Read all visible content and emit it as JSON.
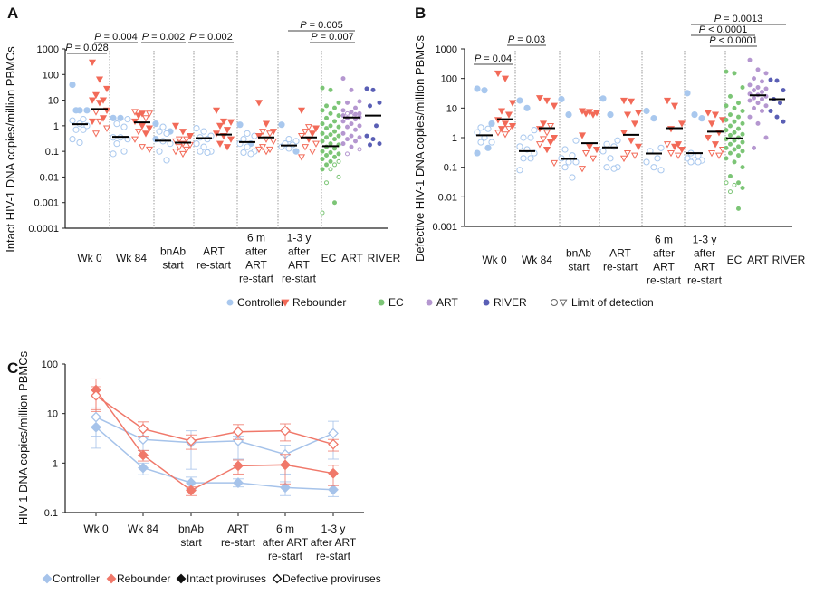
{
  "colors": {
    "controller": "#a9c8ee",
    "rebounder": "#f26a58",
    "ec": "#7cc576",
    "art": "#b597d0",
    "river": "#5a5fb5",
    "median": "#000000",
    "c_controller": "#a6c3ea",
    "c_rebounder": "#f0786a"
  },
  "legend_ab": {
    "controller": "Controller",
    "rebounder": "Rebounder",
    "ec": "EC",
    "art": "ART",
    "river": "RIVER",
    "lod": "Limit of detection"
  },
  "legend_c": {
    "controller": "Controller",
    "rebounder": "Rebounder",
    "intact": "Intact proviruses",
    "defective": "Defective proviruses"
  },
  "chart_data": [
    {
      "panel": "A",
      "type": "scatter",
      "scale": "log",
      "ylabel": "Intact HIV-1 DNA copies/million PBMCs",
      "ylim": [
        0.0001,
        1000
      ],
      "yticks": [
        "1000",
        "100",
        "10",
        "1",
        "0.1",
        "0.01",
        "0.001",
        "0.0001"
      ],
      "timepoints": [
        "Wk 0",
        "Wk 84",
        "bnAb\nstart",
        "ART\nre-start",
        "6 m\nafter\nART\nre-start",
        "1-3 y\nafter\nART\nre-start",
        "EC",
        "ART",
        "RIVER"
      ],
      "groups": [
        {
          "tp": 0,
          "cohort": "controller",
          "median": 1.15,
          "filled": [
            40,
            4,
            4,
            4
          ],
          "open": [
            1.8,
            1.6,
            1.2,
            1,
            0.7,
            0.7,
            0.3,
            0.22
          ]
        },
        {
          "tp": 0,
          "cohort": "rebounder",
          "median": 4.5,
          "filled": [
            300,
            65,
            28,
            16,
            10,
            10,
            8,
            4,
            2,
            1.5
          ],
          "open": [
            3.5,
            1.5,
            0.8,
            0.5
          ]
        },
        {
          "tp": 1,
          "cohort": "controller",
          "median": 0.37,
          "filled": [
            2,
            2
          ],
          "open": [
            1.8,
            1.2,
            0.9,
            0.35,
            0.35,
            0.3,
            0.2,
            0.1,
            0.08
          ]
        },
        {
          "tp": 1,
          "cohort": "rebounder",
          "median": 1.35,
          "filled": [
            3,
            2.5,
            1.5,
            1,
            0.8,
            0.5
          ],
          "open": [
            3.5,
            3,
            2,
            0.6,
            0.3,
            0.15,
            0.12
          ]
        },
        {
          "tp": 2,
          "cohort": "controller",
          "median": 0.26,
          "filled": [
            1.2,
            0.6,
            0.3
          ],
          "open": [
            0.9,
            0.6,
            0.5,
            0.25,
            0.2,
            0.1,
            0.045
          ]
        },
        {
          "tp": 2,
          "cohort": "rebounder",
          "median": 0.22,
          "filled": [
            1,
            0.6,
            0.4
          ],
          "open": [
            0.3,
            0.3,
            0.25,
            0.2,
            0.18,
            0.15,
            0.12,
            0.1,
            0.08
          ]
        },
        {
          "tp": 3,
          "cohort": "controller",
          "median": 0.33,
          "filled": [],
          "open": [
            0.8,
            0.6,
            0.4,
            0.35,
            0.3,
            0.2,
            0.15,
            0.1,
            0.1,
            0.09
          ]
        },
        {
          "tp": 3,
          "cohort": "rebounder",
          "median": 0.45,
          "filled": [
            4,
            1.5,
            1.4,
            1,
            0.7,
            0.5,
            0.4,
            0.3,
            0.2,
            0.15
          ],
          "open": []
        },
        {
          "tp": 4,
          "cohort": "controller",
          "median": 0.23,
          "filled": [
            1.1,
            0.2
          ],
          "open": [
            0.5,
            0.4,
            0.3,
            0.2,
            0.15,
            0.1,
            0.09,
            0.08
          ]
        },
        {
          "tp": 4,
          "cohort": "rebounder",
          "median": 0.35,
          "filled": [
            8,
            1.2,
            0.6,
            0.4
          ],
          "open": [
            0.6,
            0.5,
            0.3,
            0.25,
            0.15,
            0.12,
            0.12,
            0.1
          ]
        },
        {
          "tp": 5,
          "cohort": "controller",
          "median": 0.17,
          "filled": [
            1.1,
            0.1
          ],
          "open": [
            0.3,
            0.25,
            0.2,
            0.18,
            0.15,
            0.13
          ]
        },
        {
          "tp": 5,
          "cohort": "rebounder",
          "median": 0.35,
          "filled": [
            4,
            0.8,
            0.5,
            0.3
          ],
          "open": [
            0.9,
            0.6,
            0.4,
            0.2,
            0.15,
            0.1,
            0.06
          ]
        },
        {
          "tp": 6,
          "cohort": "ec",
          "median": 0.16,
          "filled": [
            30,
            25,
            8,
            6,
            5,
            4,
            3,
            2.5,
            2,
            1.5,
            1.2,
            1,
            0.9,
            0.8,
            0.6,
            0.5,
            0.45,
            0.4,
            0.35,
            0.3,
            0.25,
            0.2,
            0.18,
            0.15,
            0.13,
            0.1,
            0.09,
            0.08,
            0.07,
            0.06,
            0.05,
            0.04,
            0.03,
            0.02,
            0.001
          ],
          "open": [
            0.04,
            0.03,
            0.02,
            0.01,
            0.006,
            0.0004
          ]
        },
        {
          "tp": 7,
          "cohort": "art",
          "median": 2.1,
          "filled": [
            70,
            25,
            9,
            8,
            5,
            4,
            3.5,
            3,
            2.8,
            2.5,
            2.2,
            2,
            1.8,
            1.5,
            1.2,
            1,
            0.9,
            0.7,
            0.5,
            0.4,
            0.35,
            0.3,
            0.25,
            0.2,
            0.15
          ],
          "open": [
            3,
            2.5,
            0.12,
            0.08
          ]
        },
        {
          "tp": 8,
          "cohort": "river",
          "median": 2.5,
          "filled": [
            28,
            25,
            8,
            6,
            1,
            0.4,
            0.3,
            0.2,
            0.18
          ],
          "open": []
        }
      ],
      "comparisons": [
        {
          "p": "P",
          "text": " = 0.028",
          "from": 0,
          "to": 1
        },
        {
          "p": "P",
          "text": " = 0.004",
          "from": 1,
          "to": 3
        },
        {
          "p": "P",
          "text": " = 0.002",
          "from": 3,
          "to": 5
        },
        {
          "p": "P",
          "text": " = 0.002",
          "from": 5,
          "to": 7
        },
        {
          "p": "P",
          "text": " = 0.005",
          "from": 10,
          "to": 13
        },
        {
          "p": "P",
          "text": " = 0.007",
          "from": 11,
          "to": 13
        }
      ]
    },
    {
      "panel": "B",
      "type": "scatter",
      "scale": "log",
      "ylabel": "Defective HIV-1 DNA copies/million PBMCs",
      "ylim": [
        0.001,
        1000
      ],
      "yticks": [
        "1000",
        "100",
        "10",
        "1",
        "0.1",
        "0.01",
        "0.001"
      ],
      "timepoints": [
        "Wk 0",
        "Wk 84",
        "bnAb\nstart",
        "ART\nre-start",
        "6 m\nafter\nART\nre-start",
        "1-3 y\nafter\nART\nre-start",
        "EC",
        "ART",
        "RIVER"
      ],
      "groups": [
        {
          "tp": 0,
          "cohort": "controller",
          "median": 1.2,
          "filled": [
            45,
            40,
            3,
            0.45,
            0.3
          ],
          "open": [
            2.2,
            2,
            1.5,
            1,
            0.7,
            0.7
          ]
        },
        {
          "tp": 0,
          "cohort": "rebounder",
          "median": 4.2,
          "filled": [
            150,
            100,
            15,
            8,
            6,
            4,
            3,
            2.5,
            2
          ],
          "open": [
            2,
            1.5,
            1.3
          ]
        },
        {
          "tp": 1,
          "cohort": "controller",
          "median": 0.35,
          "filled": [
            18,
            10
          ],
          "open": [
            1.8,
            1,
            1,
            0.5,
            0.4,
            0.3,
            0.2,
            0.2,
            0.08
          ]
        },
        {
          "tp": 1,
          "cohort": "rebounder",
          "median": 2.1,
          "filled": [
            22,
            18,
            12,
            3,
            2,
            1,
            0.7,
            0.4
          ],
          "open": [
            2.5,
            1.5,
            0.9,
            0.6,
            0.14
          ]
        },
        {
          "tp": 2,
          "cohort": "controller",
          "median": 0.19,
          "filled": [
            20,
            6
          ],
          "open": [
            0.8,
            0.4,
            0.25,
            0.2,
            0.15,
            0.15,
            0.1,
            0.045
          ]
        },
        {
          "tp": 2,
          "cohort": "rebounder",
          "median": 0.65,
          "filled": [
            8,
            7.5,
            7,
            6.5,
            6,
            1.2,
            0.5,
            0.4
          ],
          "open": [
            0.3,
            0.2,
            0.09
          ]
        },
        {
          "tp": 3,
          "cohort": "controller",
          "median": 0.47,
          "filled": [
            21,
            6
          ],
          "open": [
            0.8,
            0.6,
            0.5,
            0.35,
            0.2,
            0.1,
            0.09,
            0.1
          ]
        },
        {
          "tp": 3,
          "cohort": "rebounder",
          "median": 1.25,
          "filled": [
            18,
            17,
            7,
            6,
            3,
            1.5,
            0.8,
            0.5
          ],
          "open": [
            0.3,
            0.25,
            0.2
          ]
        },
        {
          "tp": 4,
          "cohort": "controller",
          "median": 0.29,
          "filled": [
            8,
            4.5
          ],
          "open": [
            0.45,
            0.35,
            0.2,
            0.15,
            0.1,
            0.08
          ]
        },
        {
          "tp": 4,
          "cohort": "rebounder",
          "median": 2.1,
          "filled": [
            18,
            12,
            3,
            2,
            0.6,
            0.5,
            0.4
          ],
          "open": [
            0.6,
            0.3,
            0.25
          ]
        },
        {
          "tp": 5,
          "cohort": "controller",
          "median": 0.3,
          "filled": [
            32,
            6,
            4.5
          ],
          "open": [
            0.3,
            0.25,
            0.2,
            0.17,
            0.17,
            0.15,
            0.15
          ]
        },
        {
          "tp": 5,
          "cohort": "rebounder",
          "median": 1.6,
          "filled": [
            7,
            6,
            4,
            3,
            1.5,
            1,
            0.6
          ],
          "open": [
            0.4,
            0.3,
            0.25
          ]
        },
        {
          "tp": 6,
          "cohort": "ec",
          "median": 0.95,
          "filled": [
            170,
            150,
            50,
            25,
            15,
            12,
            10,
            8,
            6,
            5,
            4,
            3.5,
            3,
            2.5,
            2,
            1.8,
            1.5,
            1.3,
            1.2,
            1,
            0.9,
            0.8,
            0.7,
            0.6,
            0.5,
            0.45,
            0.4,
            0.35,
            0.3,
            0.25,
            0.2,
            0.15,
            0.1,
            0.05,
            0.03,
            0.02,
            0.004
          ],
          "open": [
            0.03,
            0.025,
            0.015
          ]
        },
        {
          "tp": 7,
          "cohort": "art",
          "median": 27,
          "filled": [
            420,
            200,
            150,
            100,
            80,
            60,
            50,
            45,
            40,
            35,
            30,
            28,
            25,
            22,
            20,
            18,
            15,
            12,
            10,
            8,
            5,
            3,
            1,
            0.45
          ],
          "open": []
        },
        {
          "tp": 8,
          "cohort": "river",
          "median": 20,
          "filled": [
            90,
            85,
            40,
            20,
            15,
            8,
            5,
            3.5
          ],
          "open": []
        }
      ],
      "comparisons": [
        {
          "p": "P",
          "text": " = 0.04",
          "from": 0,
          "to": 1
        },
        {
          "p": "P",
          "text": " = 0.03",
          "from": 1,
          "to": 3
        },
        {
          "p": "P",
          "text": " = 0.0013",
          "from": 10,
          "to": 14
        },
        {
          "p": "P",
          "text": " < 0.0001",
          "from": 10,
          "to": 13
        },
        {
          "p": "P",
          "text": " < 0.0001",
          "from": 11,
          "to": 13
        }
      ]
    },
    {
      "panel": "C",
      "type": "line",
      "scale": "log",
      "ylabel": "HIV-1 DNA copies/million PBMCs",
      "ylim": [
        0.1,
        100
      ],
      "yticks": [
        "100",
        "10",
        "1",
        "0.1"
      ],
      "categories": [
        "Wk 0",
        "Wk 84",
        "bnAb\nstart",
        "ART\nre-start",
        "6 m\nafter ART\nre-start",
        "1-3 y\nafter ART\nre-start"
      ],
      "series": [
        {
          "cohort": "controller",
          "kind": "intact",
          "values": [
            5.3,
            0.8,
            0.4,
            0.4,
            0.32,
            0.29
          ],
          "lo": [
            2,
            0.58,
            0.3,
            0.33,
            0.22,
            0.21
          ],
          "hi": [
            13,
            1.0,
            0.52,
            0.48,
            0.42,
            0.36
          ]
        },
        {
          "cohort": "controller",
          "kind": "defective",
          "values": [
            8.5,
            3.0,
            2.6,
            2.8,
            1.5,
            4.0
          ],
          "lo": [
            3.5,
            1.8,
            0.75,
            1.2,
            0.6,
            1.2
          ],
          "hi": [
            13,
            3.3,
            4.5,
            3.5,
            2.3,
            7
          ]
        },
        {
          "cohort": "rebounder",
          "kind": "intact",
          "values": [
            30,
            1.45,
            0.28,
            0.88,
            0.92,
            0.62
          ],
          "lo": [
            11,
            1.1,
            0.22,
            0.6,
            0.38,
            0.35
          ],
          "hi": [
            35,
            1.8,
            0.33,
            1.15,
            1.5,
            0.9
          ]
        },
        {
          "cohort": "rebounder",
          "kind": "defective",
          "values": [
            23,
            4.9,
            2.8,
            4.3,
            4.5,
            2.4
          ],
          "lo": [
            12,
            3.5,
            1.9,
            3,
            2.8,
            1.75
          ],
          "hi": [
            50,
            6.8,
            3.7,
            6,
            6.2,
            3
          ]
        }
      ]
    }
  ]
}
